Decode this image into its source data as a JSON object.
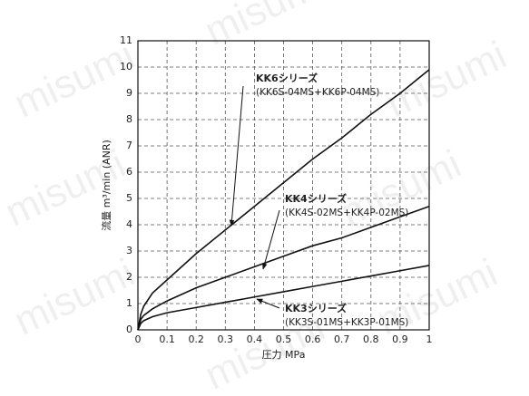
{
  "chart_data": {
    "type": "line",
    "x_label": "圧力 MPa",
    "y_label": "流量 m³/min (ANR)",
    "watermark": "misumi",
    "x": [
      0,
      0.01,
      0.02,
      0.05,
      0.1,
      0.2,
      0.3,
      0.4,
      0.5,
      0.6,
      0.7,
      0.8,
      0.9,
      1
    ],
    "series": [
      {
        "name": "KK6シリーズ",
        "detail": "(KK6S-04MS+KK6P-04MS)",
        "color": "#111111",
        "values": [
          0,
          0.6,
          0.9,
          1.4,
          1.9,
          2.9,
          3.8,
          4.7,
          5.6,
          6.5,
          7.3,
          8.2,
          9.0,
          9.9
        ]
      },
      {
        "name": "KK4シリーズ",
        "detail": "(KK4S-02MS+KK4P-02MS)",
        "color": "#111111",
        "values": [
          0,
          0.4,
          0.55,
          0.8,
          1.1,
          1.6,
          2.0,
          2.4,
          2.8,
          3.2,
          3.5,
          3.9,
          4.3,
          4.7
        ]
      },
      {
        "name": "KK3シリーズ",
        "detail": "(KK3S-01MS+KK3P-01MS)",
        "color": "#111111",
        "values": [
          0,
          0.25,
          0.35,
          0.5,
          0.65,
          0.85,
          1.05,
          1.25,
          1.45,
          1.65,
          1.85,
          2.05,
          2.25,
          2.45
        ]
      }
    ],
    "xlim": [
      0,
      1
    ],
    "xticks": [
      0,
      0.1,
      0.2,
      0.3,
      0.4,
      0.5,
      0.6,
      0.7,
      0.8,
      0.9,
      1
    ],
    "ylim": [
      0,
      11
    ],
    "yticks": [
      0,
      1,
      2,
      3,
      4,
      5,
      6,
      7,
      8,
      9,
      10,
      11
    ],
    "grid": true
  }
}
